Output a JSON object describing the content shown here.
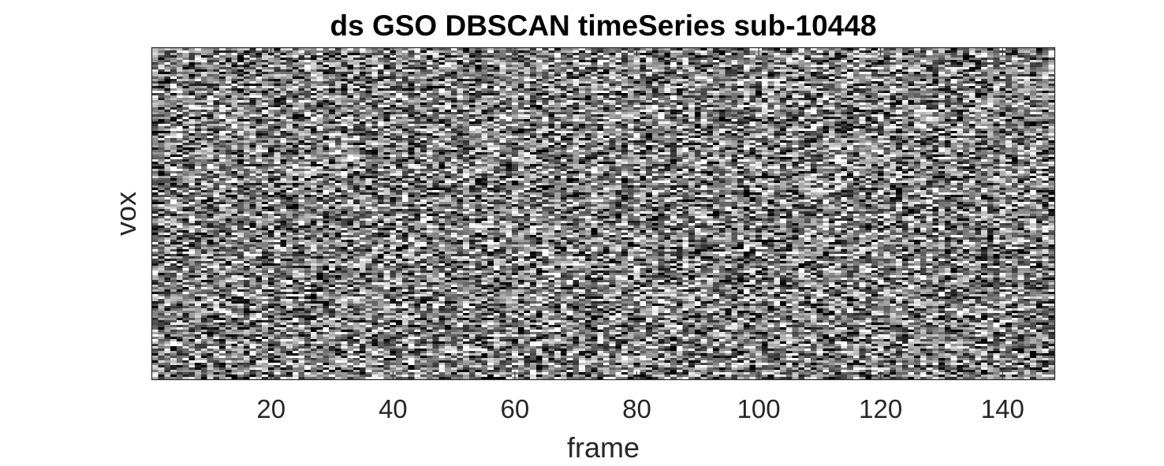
{
  "chart_data": {
    "type": "heatmap",
    "title": "ds GSO DBSCAN timeSeries sub-10448",
    "xlabel": "frame",
    "ylabel": "vox",
    "x_range": [
      1,
      148
    ],
    "x_ticks": [
      20,
      40,
      60,
      80,
      100,
      120,
      140
    ],
    "x_tick_labels": [
      "20",
      "40",
      "60",
      "80",
      "100",
      "120",
      "140"
    ],
    "y_ticks": [],
    "colormap": "gray",
    "grid": false,
    "legend": "none"
  }
}
